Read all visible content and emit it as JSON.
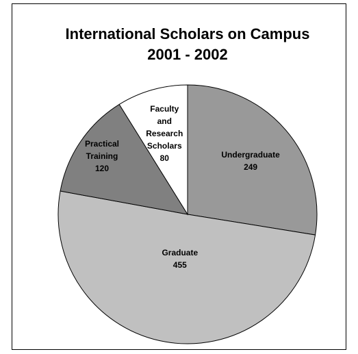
{
  "chart_data": {
    "type": "pie",
    "title": "International Scholars on Campus",
    "subtitle": "2001 - 2002",
    "categories": [
      "Undergraduate",
      "Graduate",
      "Practical Training",
      "Faculty and Research Scholars"
    ],
    "values": [
      249,
      455,
      120,
      80
    ],
    "colors": [
      "#999999",
      "#c0c0c0",
      "#808080",
      "#ffffff"
    ],
    "start_angle": 0,
    "direction": "clockwise"
  }
}
